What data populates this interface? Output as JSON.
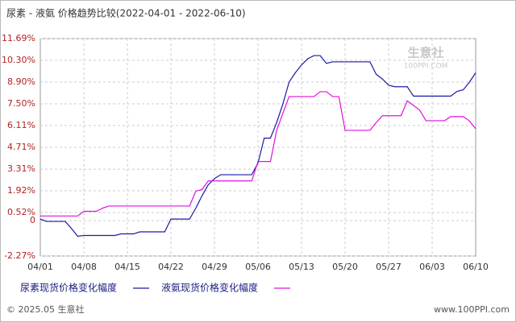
{
  "chart_data": {
    "type": "line",
    "title": "尿素 - 液氨 价格趋势比较(2022-04-01 - 2022-06-10)",
    "watermark": {
      "name": "生意社",
      "site": "100PPI.COM"
    },
    "footer": {
      "left": "© 2025.05 生意社",
      "right": "www.100PPI.com"
    },
    "categories": [
      "04/01",
      null,
      null,
      null,
      null,
      null,
      null,
      "04/08",
      null,
      null,
      null,
      null,
      null,
      null,
      "04/15",
      null,
      null,
      null,
      null,
      null,
      null,
      "04/22",
      null,
      null,
      null,
      null,
      null,
      null,
      "04/29",
      null,
      null,
      null,
      null,
      null,
      null,
      "05/06",
      null,
      null,
      null,
      null,
      null,
      null,
      "05/13",
      null,
      null,
      null,
      null,
      null,
      null,
      "05/20",
      null,
      null,
      null,
      null,
      null,
      null,
      "05/27",
      null,
      null,
      null,
      null,
      null,
      null,
      "06/03",
      null,
      null,
      null,
      null,
      null,
      null,
      "06/10"
    ],
    "series": [
      {
        "name": "尿素现货价格变化幅度",
        "color": "#1a1aa6",
        "values": [
          0.1,
          -0.05,
          -0.05,
          -0.05,
          -0.05,
          -0.5,
          -1.0,
          -0.95,
          -0.95,
          -0.95,
          -0.95,
          -0.95,
          -0.95,
          -0.85,
          -0.85,
          -0.85,
          -0.72,
          -0.72,
          -0.72,
          -0.72,
          -0.72,
          0.1,
          0.1,
          0.1,
          0.1,
          0.8,
          1.6,
          2.3,
          2.7,
          2.95,
          2.95,
          2.95,
          2.95,
          2.95,
          2.95,
          3.7,
          5.3,
          5.3,
          6.3,
          7.5,
          8.9,
          9.5,
          10.0,
          10.4,
          10.6,
          10.6,
          10.1,
          10.2,
          10.2,
          10.2,
          10.2,
          10.2,
          10.2,
          10.2,
          9.4,
          9.1,
          8.7,
          8.6,
          8.6,
          8.6,
          8.0,
          8.0,
          8.0,
          8.0,
          8.0,
          8.0,
          8.0,
          8.3,
          8.4,
          8.9,
          9.5
        ]
      },
      {
        "name": "液氨现货价格变化幅度",
        "color": "#e010e0",
        "values": [
          0.3,
          0.3,
          0.3,
          0.3,
          0.3,
          0.3,
          0.3,
          0.6,
          0.6,
          0.6,
          0.8,
          0.94,
          0.94,
          0.94,
          0.94,
          0.94,
          0.94,
          0.94,
          0.94,
          0.94,
          0.94,
          0.94,
          0.94,
          0.94,
          0.94,
          1.9,
          2.0,
          2.55,
          2.55,
          2.55,
          2.55,
          2.55,
          2.55,
          2.55,
          2.55,
          3.8,
          3.8,
          3.8,
          5.8,
          6.9,
          7.97,
          7.97,
          7.97,
          7.97,
          7.97,
          8.28,
          8.28,
          7.97,
          7.97,
          5.8,
          5.8,
          5.8,
          5.8,
          5.8,
          6.3,
          6.74,
          6.74,
          6.74,
          6.74,
          7.7,
          7.4,
          7.1,
          6.42,
          6.42,
          6.42,
          6.42,
          6.68,
          6.68,
          6.68,
          6.4,
          5.9
        ]
      }
    ],
    "ylim": [
      -2.27,
      11.69
    ],
    "yticks": [
      {
        "value": -2.27,
        "label": "-2.27%"
      },
      0,
      {
        "value": 0.52,
        "label": "0.52%"
      },
      {
        "value": 1.92,
        "label": "1.92%"
      },
      {
        "value": 3.31,
        "label": "3.31%"
      },
      {
        "value": 4.71,
        "label": "4.71%"
      },
      {
        "value": 6.11,
        "label": "6.11%"
      },
      {
        "value": 7.5,
        "label": "7.50%"
      },
      {
        "value": 8.9,
        "label": "8.90%"
      },
      {
        "value": 10.3,
        "label": "10.30%"
      },
      {
        "value": 11.69,
        "label": "11.69%"
      }
    ],
    "grid": true
  }
}
